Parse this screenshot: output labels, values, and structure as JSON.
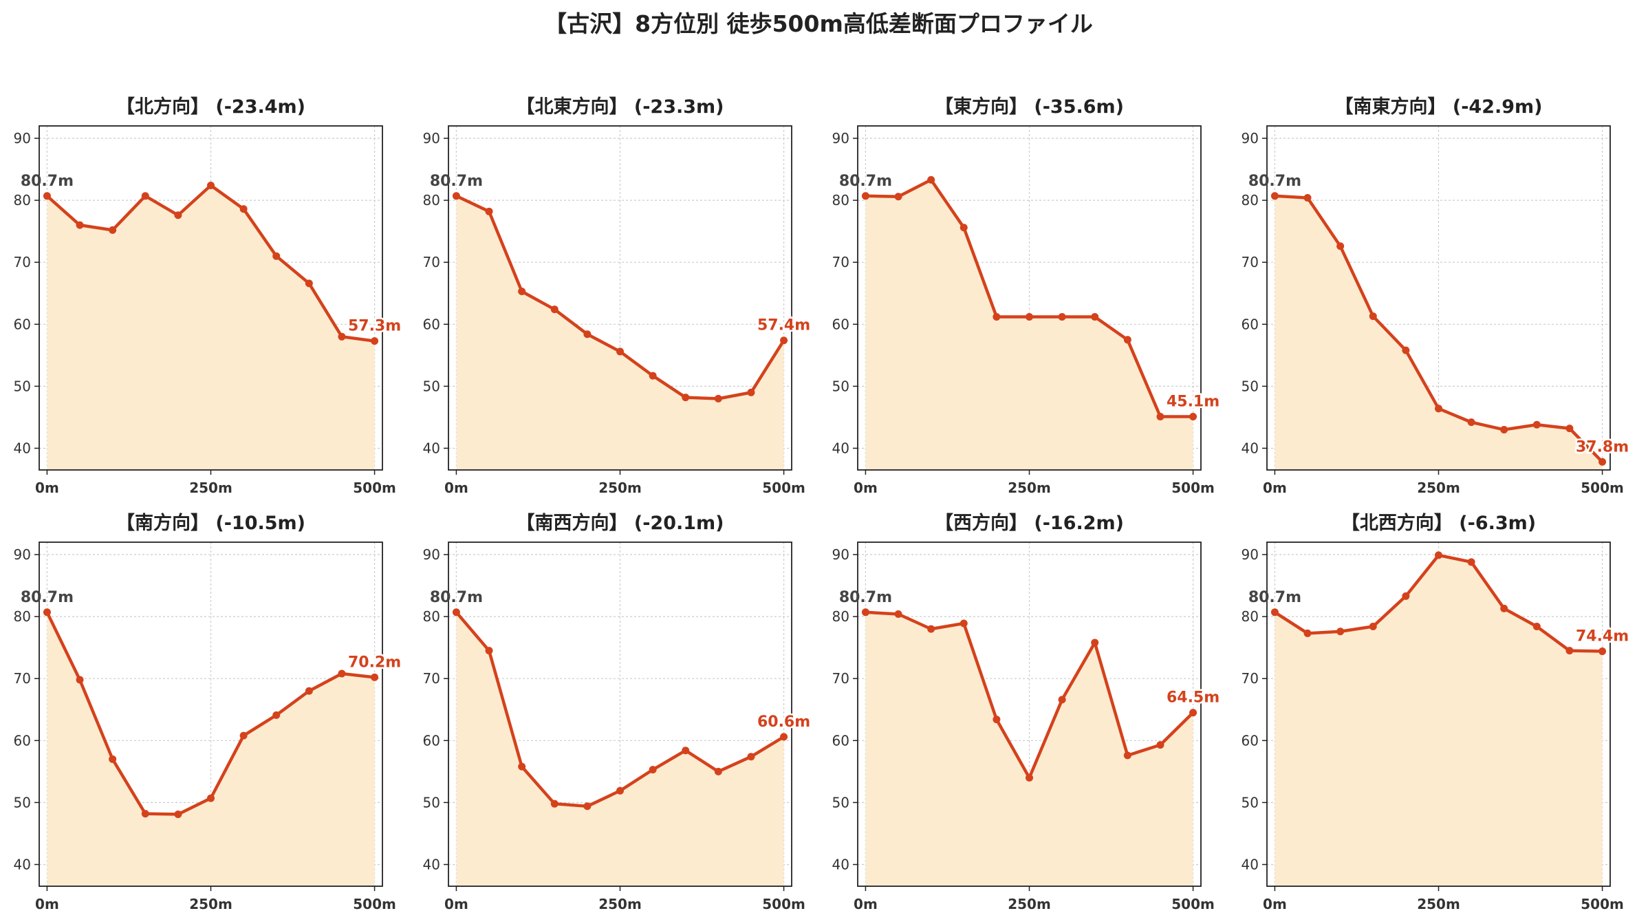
{
  "figure": {
    "title": "【古沢】8方位別 徒歩500m高低差断面プロファイル",
    "colors": {
      "line": "#d4421c",
      "fill": "#fdebd0",
      "start_label": "#444444",
      "end_label": "#d4421c",
      "grid": "#cccccc"
    }
  },
  "chart_data": [
    {
      "type": "area",
      "title": "【北方向】 (-23.4m)",
      "x": [
        0,
        50,
        100,
        150,
        200,
        250,
        300,
        350,
        400,
        450,
        500
      ],
      "values": [
        80.7,
        76.0,
        75.2,
        80.7,
        77.6,
        82.4,
        78.6,
        71.0,
        66.6,
        58.0,
        57.3
      ],
      "start_label": "80.7m",
      "end_label": "57.3m",
      "xticks": [
        "0m",
        "250m",
        "500m"
      ],
      "yticks": [
        40,
        50,
        60,
        70,
        80,
        90
      ],
      "ylim": [
        36.5,
        92
      ],
      "xlim": [
        -12,
        512
      ],
      "grid": true
    },
    {
      "type": "area",
      "title": "【北東方向】 (-23.3m)",
      "x": [
        0,
        50,
        100,
        150,
        200,
        250,
        300,
        350,
        400,
        450,
        500
      ],
      "values": [
        80.7,
        78.2,
        65.3,
        62.4,
        58.4,
        55.6,
        51.7,
        48.2,
        48.0,
        49.0,
        57.4
      ],
      "start_label": "80.7m",
      "end_label": "57.4m",
      "xticks": [
        "0m",
        "250m",
        "500m"
      ],
      "yticks": [
        40,
        50,
        60,
        70,
        80,
        90
      ],
      "ylim": [
        36.5,
        92
      ],
      "xlim": [
        -12,
        512
      ],
      "grid": true
    },
    {
      "type": "area",
      "title": "【東方向】 (-35.6m)",
      "x": [
        0,
        50,
        100,
        150,
        200,
        250,
        300,
        350,
        400,
        450,
        500
      ],
      "values": [
        80.7,
        80.6,
        83.3,
        75.6,
        61.2,
        61.2,
        61.2,
        61.2,
        57.5,
        45.1,
        45.1
      ],
      "start_label": "80.7m",
      "end_label": "45.1m",
      "xticks": [
        "0m",
        "250m",
        "500m"
      ],
      "yticks": [
        40,
        50,
        60,
        70,
        80,
        90
      ],
      "ylim": [
        36.5,
        92
      ],
      "xlim": [
        -12,
        512
      ],
      "grid": true
    },
    {
      "type": "area",
      "title": "【南東方向】 (-42.9m)",
      "x": [
        0,
        50,
        100,
        150,
        200,
        250,
        300,
        350,
        400,
        450,
        500
      ],
      "values": [
        80.7,
        80.4,
        72.6,
        61.3,
        55.8,
        46.4,
        44.2,
        43.0,
        43.8,
        43.2,
        37.8
      ],
      "start_label": "80.7m",
      "end_label": "37.8m",
      "xticks": [
        "0m",
        "250m",
        "500m"
      ],
      "yticks": [
        40,
        50,
        60,
        70,
        80,
        90
      ],
      "ylim": [
        36.5,
        92
      ],
      "xlim": [
        -12,
        512
      ],
      "grid": true
    },
    {
      "type": "area",
      "title": "【南方向】 (-10.5m)",
      "x": [
        0,
        50,
        100,
        150,
        200,
        250,
        300,
        350,
        400,
        450,
        500
      ],
      "values": [
        80.7,
        69.8,
        57.0,
        48.2,
        48.1,
        50.7,
        60.8,
        64.1,
        68.0,
        70.8,
        70.2
      ],
      "start_label": "80.7m",
      "end_label": "70.2m",
      "xticks": [
        "0m",
        "250m",
        "500m"
      ],
      "yticks": [
        40,
        50,
        60,
        70,
        80,
        90
      ],
      "ylim": [
        36.5,
        92
      ],
      "xlim": [
        -12,
        512
      ],
      "grid": true
    },
    {
      "type": "area",
      "title": "【南西方向】 (-20.1m)",
      "x": [
        0,
        50,
        100,
        150,
        200,
        250,
        300,
        350,
        400,
        450,
        500
      ],
      "values": [
        80.7,
        74.5,
        55.8,
        49.8,
        49.4,
        51.9,
        55.3,
        58.4,
        55.0,
        57.4,
        60.6
      ],
      "start_label": "80.7m",
      "end_label": "60.6m",
      "xticks": [
        "0m",
        "250m",
        "500m"
      ],
      "yticks": [
        40,
        50,
        60,
        70,
        80,
        90
      ],
      "ylim": [
        36.5,
        92
      ],
      "xlim": [
        -12,
        512
      ],
      "grid": true
    },
    {
      "type": "area",
      "title": "【西方向】 (-16.2m)",
      "x": [
        0,
        50,
        100,
        150,
        200,
        250,
        300,
        350,
        400,
        450,
        500
      ],
      "values": [
        80.7,
        80.4,
        78.0,
        78.9,
        63.4,
        54.0,
        66.6,
        75.8,
        57.6,
        59.3,
        64.5
      ],
      "start_label": "80.7m",
      "end_label": "64.5m",
      "xticks": [
        "0m",
        "250m",
        "500m"
      ],
      "yticks": [
        40,
        50,
        60,
        70,
        80,
        90
      ],
      "ylim": [
        36.5,
        92
      ],
      "xlim": [
        -12,
        512
      ],
      "grid": true
    },
    {
      "type": "area",
      "title": "【北西方向】 (-6.3m)",
      "x": [
        0,
        50,
        100,
        150,
        200,
        250,
        300,
        350,
        400,
        450,
        500
      ],
      "values": [
        80.7,
        77.3,
        77.6,
        78.4,
        83.3,
        89.9,
        88.8,
        81.3,
        78.4,
        74.5,
        74.4
      ],
      "start_label": "80.7m",
      "end_label": "74.4m",
      "xticks": [
        "0m",
        "250m",
        "500m"
      ],
      "yticks": [
        40,
        50,
        60,
        70,
        80,
        90
      ],
      "ylim": [
        36.5,
        92
      ],
      "xlim": [
        -12,
        512
      ],
      "grid": true
    }
  ]
}
